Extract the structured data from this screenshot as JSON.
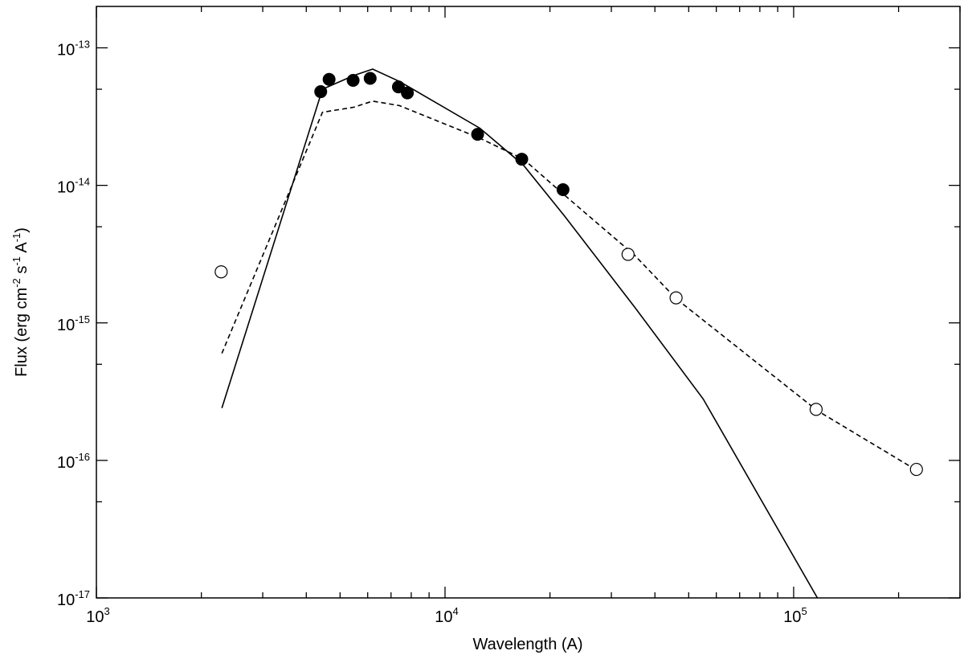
{
  "chart_data": {
    "type": "scatter",
    "xlabel": "Wavelength (A)",
    "ylabel": {
      "parts": [
        "Flux (erg cm",
        "-2",
        " s",
        "-1",
        " A",
        "-1",
        ")"
      ]
    },
    "xscale": "log",
    "yscale": "log",
    "xlim": [
      1000,
      300000
    ],
    "ylim": [
      1e-17,
      2e-13
    ],
    "x_ticks": [
      {
        "value": 1000,
        "base": "10",
        "exp": "3"
      },
      {
        "value": 10000,
        "base": "10",
        "exp": "4"
      },
      {
        "value": 100000,
        "base": "10",
        "exp": "5"
      }
    ],
    "y_ticks": [
      {
        "value": 1e-13,
        "base": "10",
        "exp": "-13"
      },
      {
        "value": 1e-14,
        "base": "10",
        "exp": "-14"
      },
      {
        "value": 1e-15,
        "base": "10",
        "exp": "-15"
      },
      {
        "value": 1e-16,
        "base": "10",
        "exp": "-16"
      },
      {
        "value": 1e-17,
        "base": "10",
        "exp": "-17"
      }
    ],
    "series": [
      {
        "style": "solid-line",
        "x": [
          2290,
          4450,
          5480,
          6200,
          7400,
          12600,
          16800,
          22000,
          35000,
          55000,
          117000
        ],
        "y": [
          2.4e-16,
          5e-14,
          6.3e-14,
          7e-14,
          5.7e-14,
          2.6e-14,
          1.4e-14,
          6e-15,
          1.3e-15,
          2.8e-16,
          1e-17
        ]
      },
      {
        "style": "dashed-line",
        "x": [
          2290,
          4450,
          5480,
          6200,
          7400,
          12600,
          16800,
          22000,
          35000,
          46000,
          117000,
          225000
        ],
        "y": [
          6e-16,
          3.4e-14,
          3.7e-14,
          4.1e-14,
          3.8e-14,
          2.2e-14,
          1.55e-14,
          8.5e-15,
          3.1e-15,
          1.5e-15,
          2.3e-16,
          8.5e-17
        ]
      },
      {
        "style": "filled-circle",
        "x": [
          4400,
          4650,
          5450,
          6100,
          7350,
          7800,
          12400,
          16600,
          21800
        ],
        "y": [
          4.8e-14,
          5.9e-14,
          5.8e-14,
          6e-14,
          5.2e-14,
          4.7e-14,
          2.35e-14,
          1.55e-14,
          9.3e-15
        ]
      },
      {
        "style": "open-circle",
        "x": [
          2280,
          33500,
          46000,
          116000,
          225000
        ],
        "y": [
          2.35e-15,
          3.15e-15,
          1.52e-15,
          2.35e-16,
          8.6e-17
        ]
      }
    ]
  }
}
